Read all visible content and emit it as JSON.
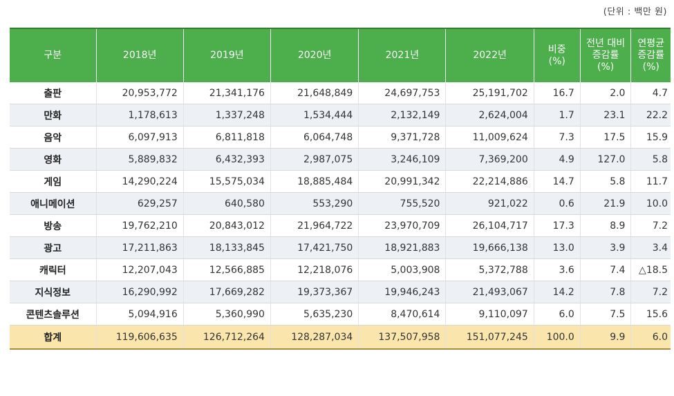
{
  "unit_note": "(단위 : 백만 원)",
  "headers": [
    [
      "구분"
    ],
    [
      "2018년"
    ],
    [
      "2019년"
    ],
    [
      "2020년"
    ],
    [
      "2021년"
    ],
    [
      "2022년"
    ],
    [
      "비중",
      "(%)"
    ],
    [
      "전년 대비",
      "증감률",
      "(%)"
    ],
    [
      "연평균",
      "증감률",
      "(%)"
    ]
  ],
  "rows": [
    [
      "출판",
      "20,953,772",
      "21,341,176",
      "21,648,849",
      "24,697,753",
      "25,191,702",
      "16.7",
      "2.0",
      "4.7"
    ],
    [
      "만화",
      "1,178,613",
      "1,337,248",
      "1,534,444",
      "2,132,149",
      "2,624,004",
      "1.7",
      "23.1",
      "22.2"
    ],
    [
      "음악",
      "6,097,913",
      "6,811,818",
      "6,064,748",
      "9,371,728",
      "11,009,624",
      "7.3",
      "17.5",
      "15.9"
    ],
    [
      "영화",
      "5,889,832",
      "6,432,393",
      "2,987,075",
      "3,246,109",
      "7,369,200",
      "4.9",
      "127.0",
      "5.8"
    ],
    [
      "게임",
      "14,290,224",
      "15,575,034",
      "18,885,484",
      "20,991,342",
      "22,214,886",
      "14.7",
      "5.8",
      "11.7"
    ],
    [
      "애니메이션",
      "629,257",
      "640,580",
      "553,290",
      "755,520",
      "921,022",
      "0.6",
      "21.9",
      "10.0"
    ],
    [
      "방송",
      "19,762,210",
      "20,843,012",
      "21,964,722",
      "23,970,709",
      "26,104,717",
      "17.3",
      "8.9",
      "7.2"
    ],
    [
      "광고",
      "17,211,863",
      "18,133,845",
      "17,421,750",
      "18,921,883",
      "19,666,138",
      "13.0",
      "3.9",
      "3.4"
    ],
    [
      "캐릭터",
      "12,207,043",
      "12,566,885",
      "12,218,076",
      "5,003,908",
      "5,372,788",
      "3.6",
      "7.4",
      "△18.5"
    ],
    [
      "지식정보",
      "16,290,992",
      "17,669,282",
      "19,373,367",
      "19,946,243",
      "21,493,067",
      "14.2",
      "7.8",
      "7.2"
    ],
    [
      "콘텐츠솔루션",
      "5,094,916",
      "5,360,990",
      "5,635,230",
      "8,470,614",
      "9,110,097",
      "6.0",
      "7.5",
      "15.6"
    ]
  ],
  "total": [
    "합계",
    "119,606,635",
    "126,712,264",
    "128,287,034",
    "137,507,958",
    "151,077,245",
    "100.0",
    "9.9",
    "6.0"
  ],
  "colors": {
    "header_bg": "#4caf4c",
    "alt_row_bg": "#edf0f5",
    "total_row_bg": "#fae5ad"
  }
}
